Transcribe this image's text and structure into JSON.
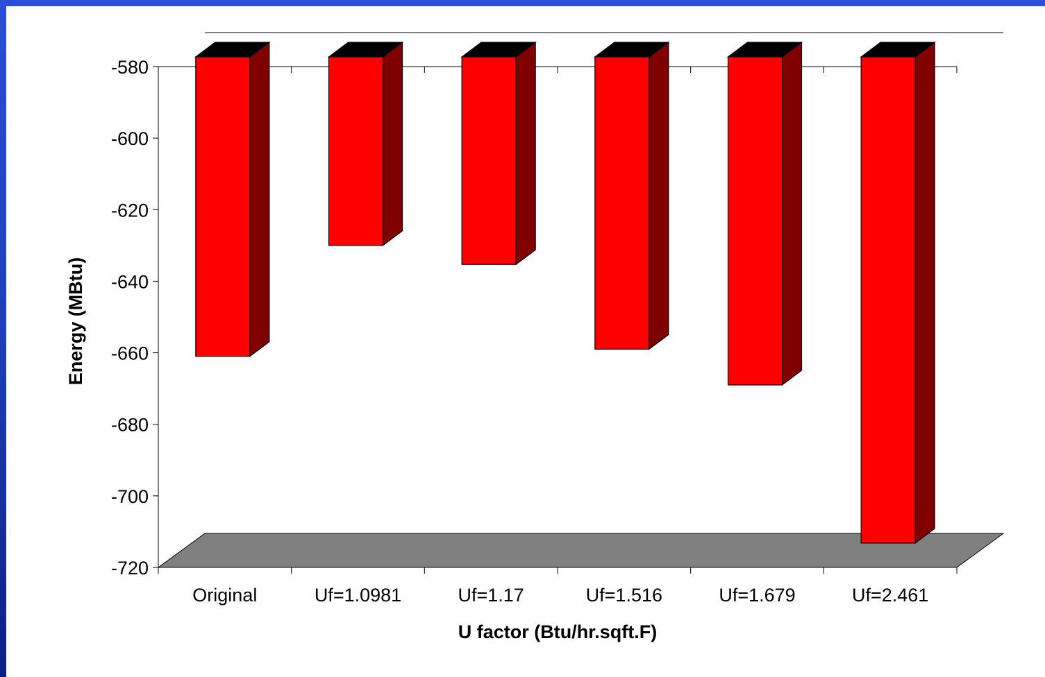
{
  "chart_data": {
    "type": "bar",
    "style": "3d-column",
    "categories": [
      "Original",
      "Uf=1.0981",
      "Uf=1.17",
      "Uf=1.516",
      "Uf=1.679",
      "Uf=2.461"
    ],
    "values": [
      -661,
      -630,
      -635.3,
      -659,
      -669,
      -713.2
    ],
    "xlabel": "U factor (Btu/hr.sqft.F)",
    "ylabel": "Energy (MBtu)",
    "ylim": [
      -720,
      -580
    ],
    "yticks": [
      -580,
      -600,
      -620,
      -640,
      -660,
      -680,
      -700,
      -720
    ],
    "colors": {
      "bar_front": "#ff0000",
      "bar_side": "#800000",
      "bar_top": "#000000",
      "floor": "#808080",
      "background": "#ffffff",
      "frame": "#2a4fd6"
    },
    "grid": false,
    "legend": "none"
  }
}
